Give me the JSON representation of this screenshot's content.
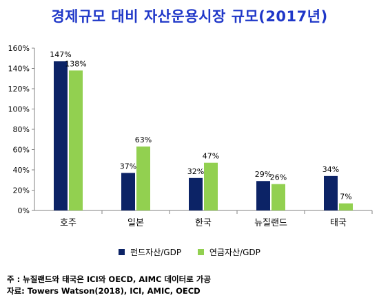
{
  "colors": {
    "title": "#1f37c8",
    "fund": "#0c2366",
    "pension": "#92d050",
    "axis": "#808080"
  },
  "chart_data": {
    "type": "bar",
    "title": "경제규모 대비 자산운용시장 규모(2017년)",
    "categories": [
      "호주",
      "일본",
      "한국",
      "뉴질랜드",
      "태국"
    ],
    "series": [
      {
        "name": "펀드자산/GDP",
        "values": [
          147,
          37,
          32,
          29,
          34
        ],
        "labels": [
          "147%",
          "37%",
          "32%",
          "29%",
          "34%"
        ]
      },
      {
        "name": "연금자산/GDP",
        "values": [
          138,
          63,
          47,
          26,
          7
        ],
        "labels": [
          "138%",
          "63%",
          "47%",
          "26%",
          "7%"
        ]
      }
    ],
    "ylim": [
      0,
      160
    ],
    "yticks": [
      "0%",
      "20%",
      "40%",
      "60%",
      "80%",
      "100%",
      "120%",
      "140%",
      "160%"
    ],
    "grid": false,
    "legend": "bottom"
  },
  "notes": {
    "note1": "주  :  뉴질랜드와 태국은 ICI와 OECD, AIMC 데이터로 가공",
    "note2": "자료: Towers Watson(2018), ICI, AMIC, OECD"
  }
}
